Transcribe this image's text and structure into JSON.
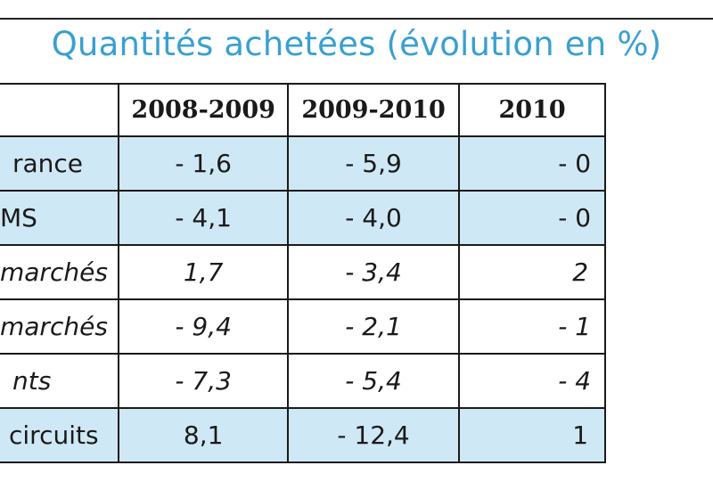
{
  "title": "Quantités achetées (évolution en %)",
  "columns": [
    "",
    "2008-2009",
    "2009-2010",
    "2010"
  ],
  "rows": [
    {
      "label": "rance",
      "values": [
        "- 1,6",
        "- 5,9",
        "- 0"
      ],
      "shaded": true,
      "italic": false
    },
    {
      "label": "MS",
      "values": [
        "- 4,1",
        "- 4,0",
        "- 0"
      ],
      "shaded": true,
      "italic": false
    },
    {
      "label": "marchés",
      "values": [
        "1,7",
        "- 3,4",
        "2"
      ],
      "shaded": false,
      "italic": true
    },
    {
      "label": "marchés",
      "values": [
        "- 9,4",
        "- 2,1",
        "- 1"
      ],
      "shaded": false,
      "italic": true
    },
    {
      "label": "nts",
      "values": [
        "- 7,3",
        "- 5,4",
        "- 4"
      ],
      "shaded": false,
      "italic": true
    },
    {
      "label": "circuits",
      "values": [
        "8,1",
        "- 12,4",
        "1"
      ],
      "shaded": true,
      "italic": false
    }
  ]
}
